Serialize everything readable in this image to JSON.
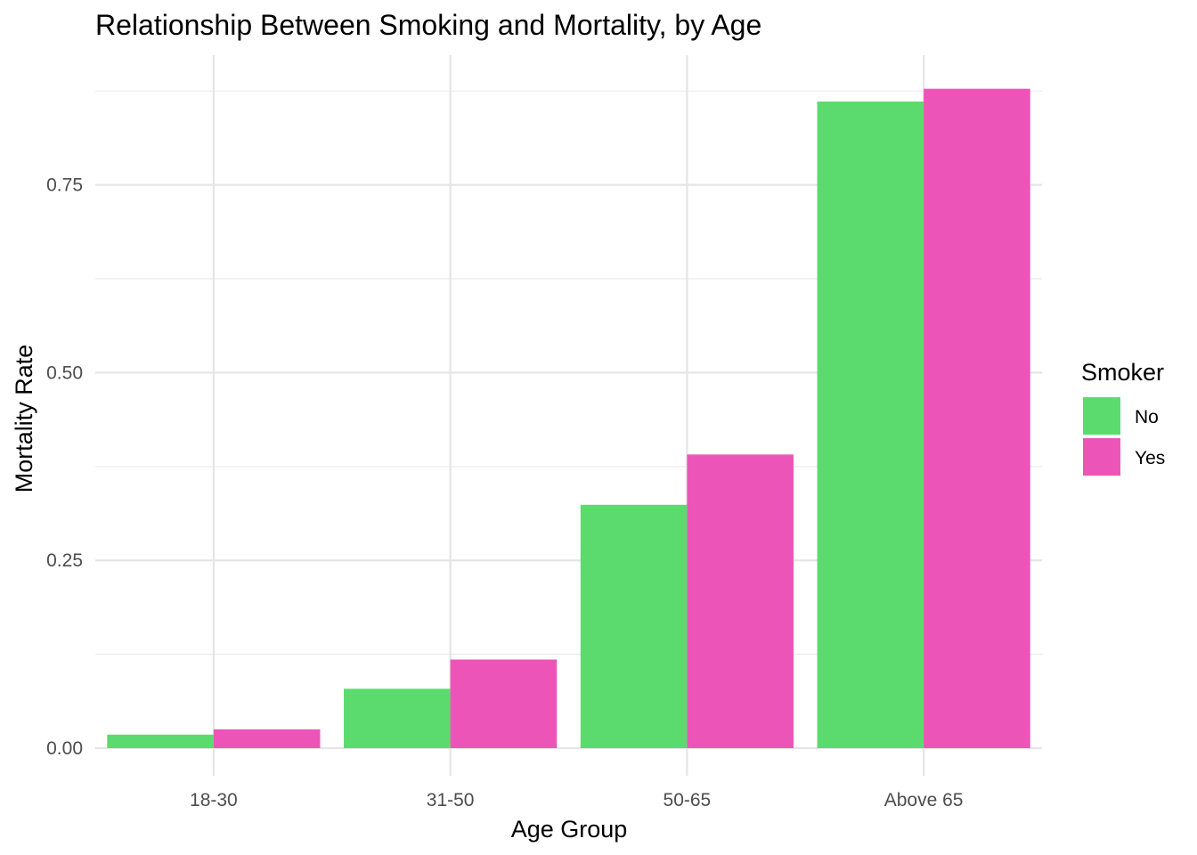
{
  "chart_data": {
    "type": "bar",
    "title": "Relationship Between Smoking and Mortality, by Age",
    "xlabel": "Age Group",
    "ylabel": "Mortality Rate",
    "categories": [
      "18-30",
      "31-50",
      "50-65",
      "Above 65"
    ],
    "series": [
      {
        "name": "No",
        "color": "#5BDB6E",
        "values": [
          0.018,
          0.079,
          0.324,
          0.861
        ]
      },
      {
        "name": "Yes",
        "color": "#EC55B7",
        "values": [
          0.025,
          0.118,
          0.391,
          0.878
        ]
      }
    ],
    "ylim": [
      0,
      0.9
    ],
    "yticks": [
      0.0,
      0.25,
      0.5,
      0.75
    ],
    "ytick_labels": [
      "0.00",
      "0.25",
      "0.50",
      "0.75"
    ],
    "grid": true,
    "legend": {
      "title": "Smoker",
      "position": "right"
    }
  }
}
